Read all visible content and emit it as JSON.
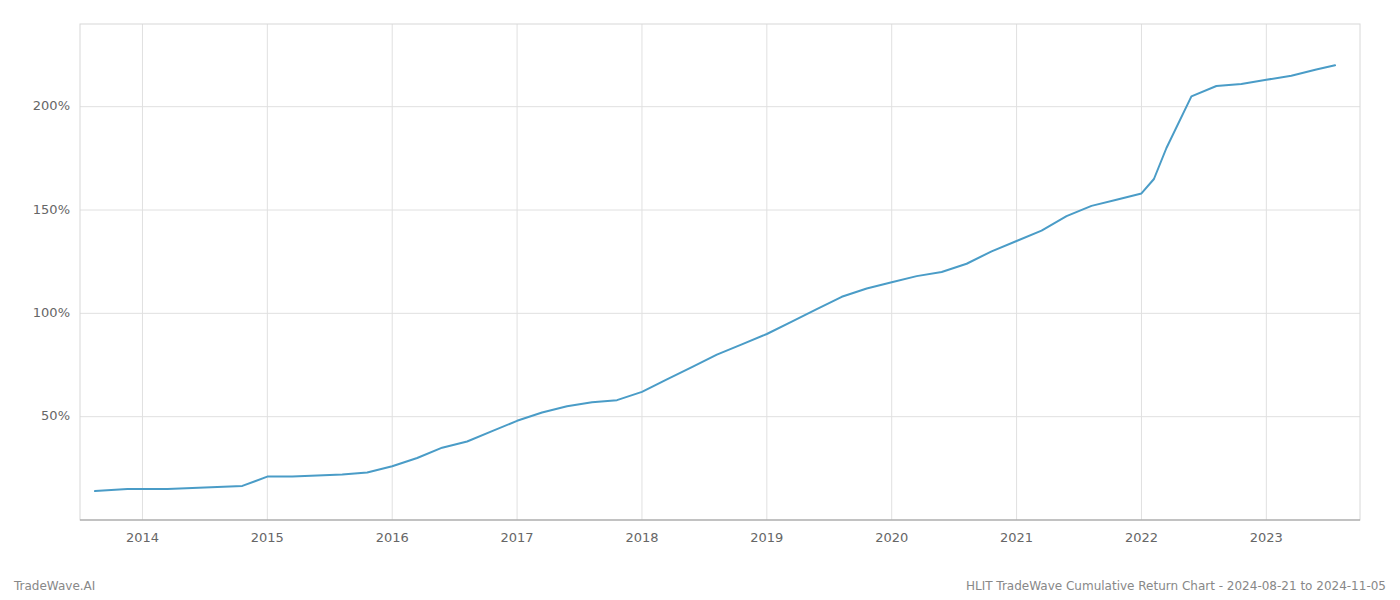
{
  "chart_data": {
    "type": "line",
    "title": "HLIT TradeWave Cumulative Return Chart - 2024-08-21 to 2024-11-05",
    "annotations": [
      "TradeWave.AI"
    ],
    "color": "#4a9cc7",
    "grid": true,
    "x": [
      2013.62,
      2013.75,
      2013.88,
      2014.0,
      2014.2,
      2014.4,
      2014.6,
      2014.8,
      2015.0,
      2015.2,
      2015.4,
      2015.6,
      2015.8,
      2016.0,
      2016.2,
      2016.4,
      2016.6,
      2016.8,
      2017.0,
      2017.2,
      2017.4,
      2017.6,
      2017.8,
      2018.0,
      2018.2,
      2018.4,
      2018.6,
      2018.8,
      2019.0,
      2019.2,
      2019.4,
      2019.6,
      2019.8,
      2020.0,
      2020.2,
      2020.4,
      2020.6,
      2020.8,
      2021.0,
      2021.2,
      2021.4,
      2021.6,
      2021.8,
      2022.0,
      2022.1,
      2022.2,
      2022.4,
      2022.6,
      2022.8,
      2023.0,
      2023.2,
      2023.4,
      2023.55
    ],
    "values": [
      14,
      14.5,
      15,
      15,
      15,
      15.5,
      16,
      16.5,
      21,
      21,
      21.5,
      22,
      23,
      26,
      30,
      35,
      38,
      43,
      48,
      52,
      55,
      57,
      58,
      62,
      68,
      74,
      80,
      85,
      90,
      96,
      102,
      108,
      112,
      115,
      118,
      120,
      124,
      130,
      135,
      140,
      147,
      152,
      155,
      158,
      165,
      180,
      205,
      210,
      211,
      213,
      215,
      218,
      220
    ],
    "xlim": [
      2013.5,
      2023.75
    ],
    "xticks": [
      2014,
      2015,
      2016,
      2017,
      2018,
      2019,
      2020,
      2021,
      2022,
      2023
    ],
    "ylim": [
      0,
      240
    ],
    "yticks": [
      {
        "value": 50,
        "label": "50%"
      },
      {
        "value": 100,
        "label": "100%"
      },
      {
        "value": 150,
        "label": "150%"
      },
      {
        "value": 200,
        "label": "200%"
      }
    ]
  }
}
